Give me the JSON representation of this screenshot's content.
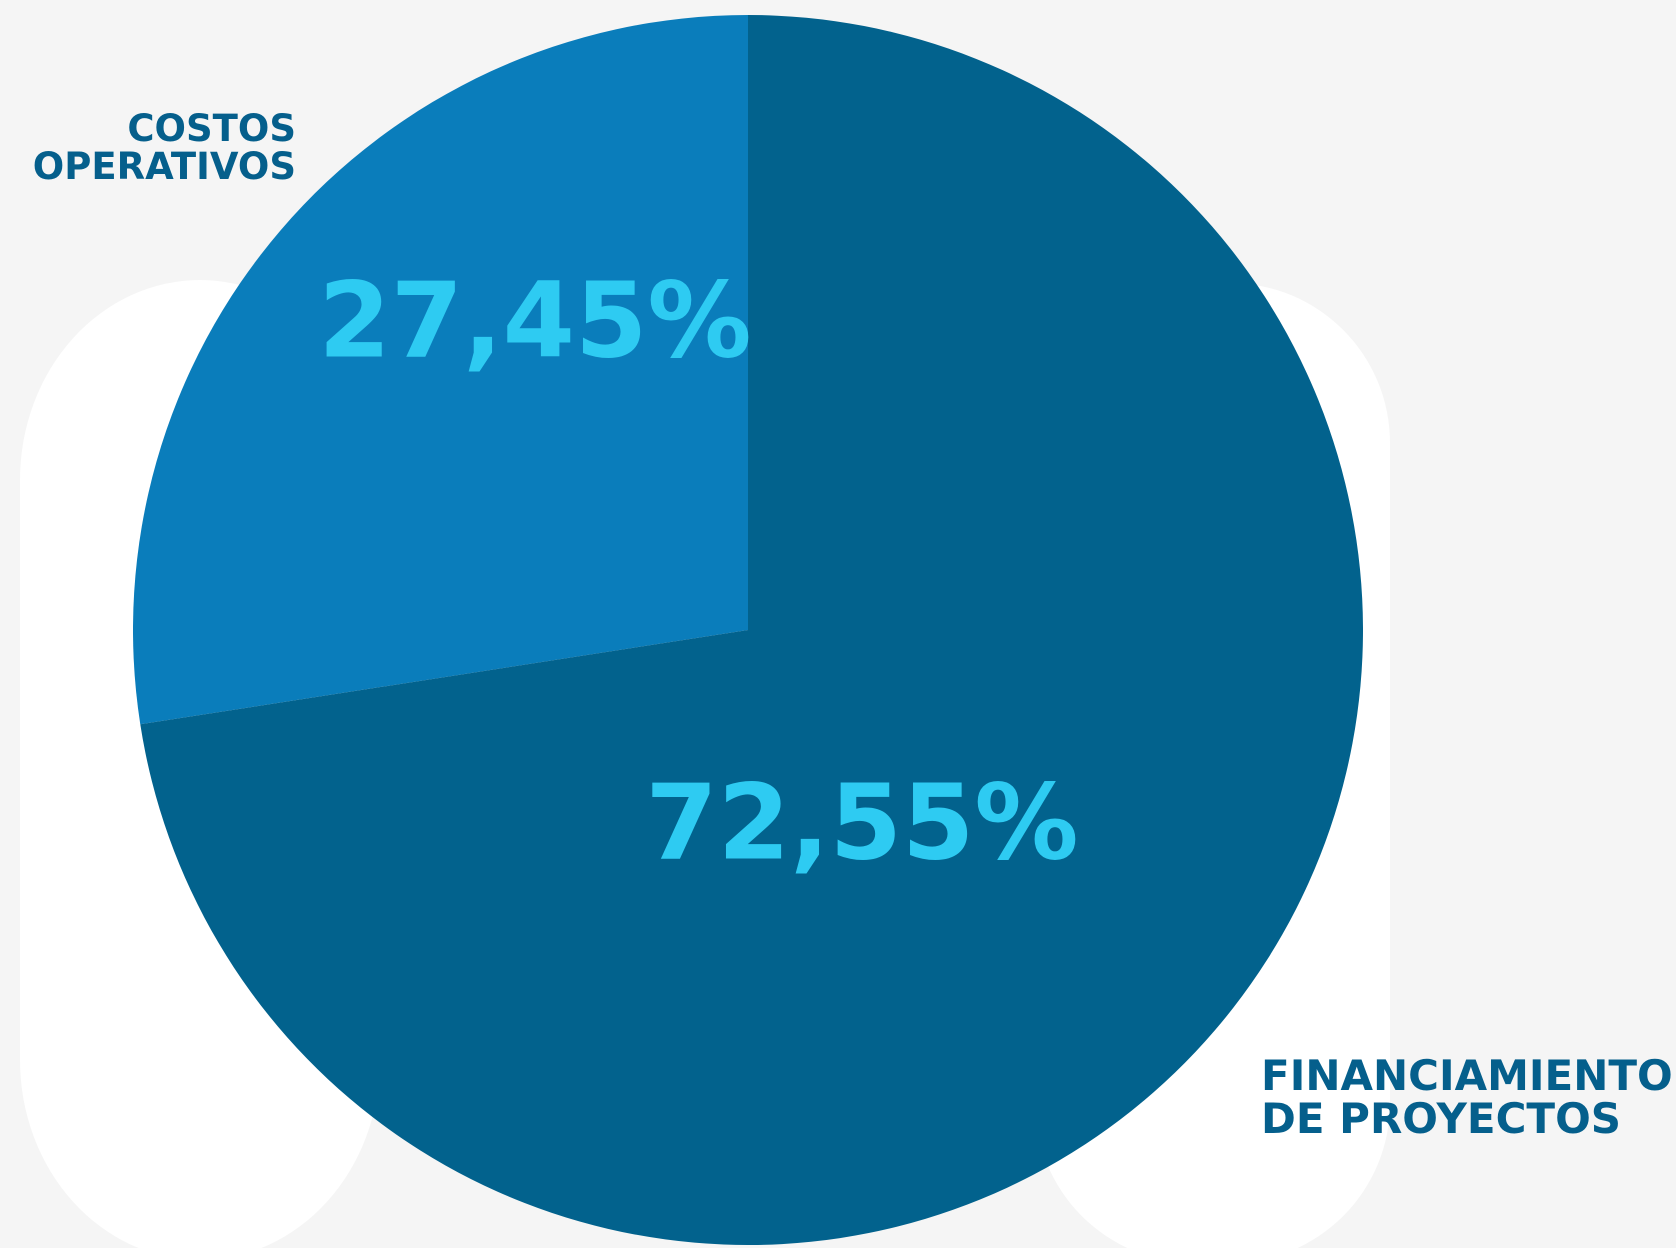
{
  "chart_data": {
    "type": "pie",
    "categories": [
      "COSTOS OPERATIVOS",
      "FINANCIAMIENTO DE PROYECTOS"
    ],
    "values": [
      27.45,
      72.55
    ],
    "value_labels": [
      "27,45%",
      "72,55%"
    ],
    "colors": [
      "#0a7dbb",
      "#02628d"
    ]
  }
}
